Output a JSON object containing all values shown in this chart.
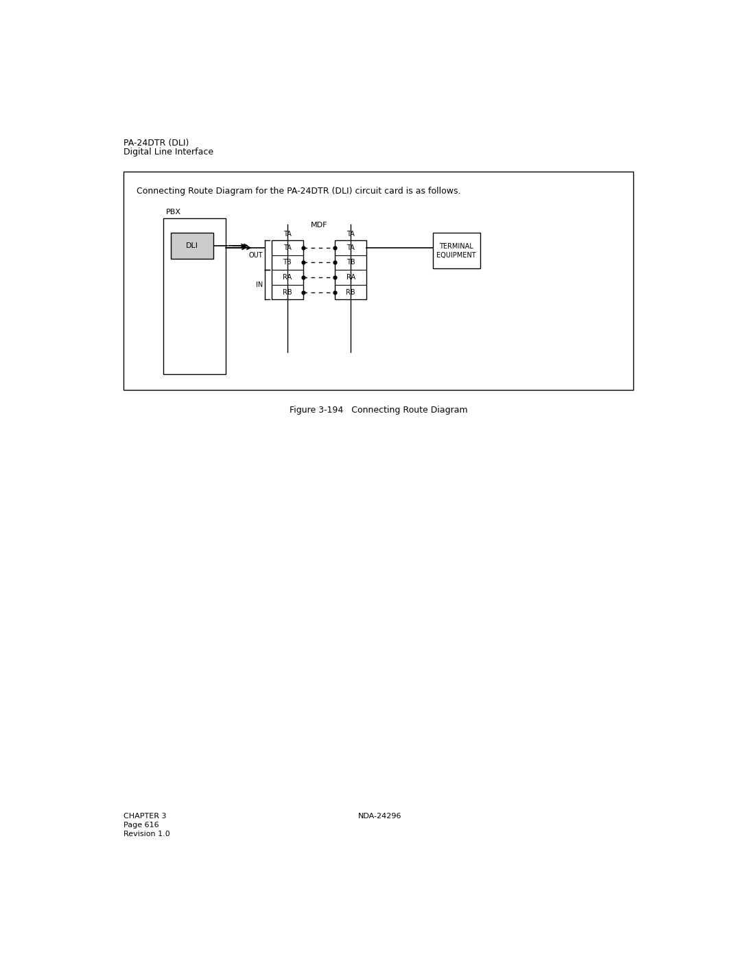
{
  "page_title_line1": "PA-24DTR (DLI)",
  "page_title_line2": "Digital Line Interface",
  "box_text": "Connecting Route Diagram for the PA-24DTR (DLI) circuit card is as follows.",
  "figure_caption": "Figure 3-194   Connecting Route Diagram",
  "pbx_label": "PBX",
  "mdf_label": "MDF",
  "dli_label": "DLI",
  "terminal_label_line1": "TERMINAL",
  "terminal_label_line2": "EQUIPMENT",
  "out_label": "OUT",
  "in_label": "IN",
  "mdf_left_rows": [
    "TA",
    "TB",
    "RA",
    "RB"
  ],
  "mdf_right_rows": [
    "TA",
    "TB",
    "RA",
    "RB"
  ],
  "chapter_text1": "CHAPTER 3",
  "chapter_text2": "Page 616",
  "chapter_text3": "Revision 1.0",
  "nda_text": "NDA-24296",
  "bg_color": "#ffffff",
  "dli_fill": "#cccccc",
  "font_size_header": 9,
  "font_size_body": 8,
  "font_size_small": 7,
  "font_size_caption": 9,
  "font_size_footer": 8
}
